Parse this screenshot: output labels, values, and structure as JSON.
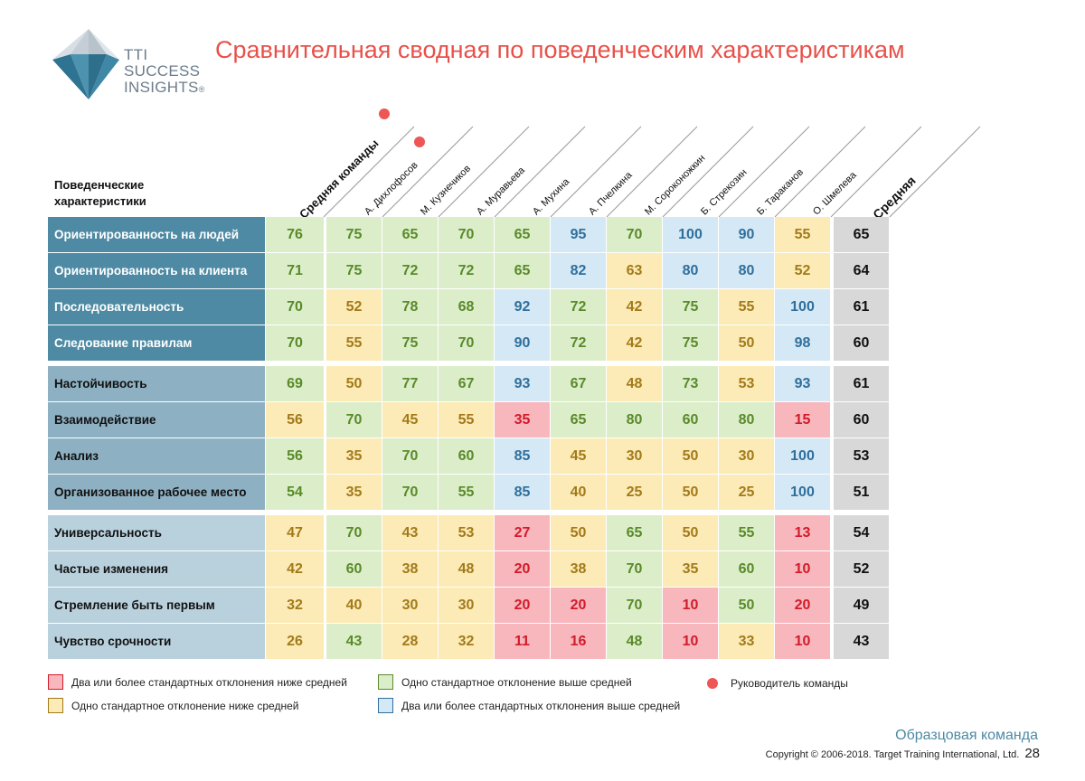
{
  "logo": {
    "line1": "TTI",
    "line2": "SUCCESS",
    "line3": "INSIGHTS",
    "reg": "®"
  },
  "title": "Сравнительная сводная по поведенческим характеристикам",
  "table": {
    "header_label": "Поведенческие характеристики",
    "columns": [
      {
        "label": "Средняя команды",
        "type": "avg-team",
        "leader": true
      },
      {
        "label": "А. Дихлофосов",
        "type": "person",
        "leader": true
      },
      {
        "label": "М. Кузнечиков",
        "type": "person",
        "leader": false
      },
      {
        "label": "А. Муравьева",
        "type": "person",
        "leader": false
      },
      {
        "label": "А. Мухина",
        "type": "person",
        "leader": false
      },
      {
        "label": "А. Пчелкина",
        "type": "person",
        "leader": false
      },
      {
        "label": "М. Сороконожкин",
        "type": "person",
        "leader": false
      },
      {
        "label": "Б. Стрекозин",
        "type": "person",
        "leader": false
      },
      {
        "label": "Б. Тараканов",
        "type": "person",
        "leader": false
      },
      {
        "label": "О. Шмелева",
        "type": "person",
        "leader": false
      },
      {
        "label": "Средняя",
        "type": "avg",
        "leader": false
      }
    ],
    "rows": [
      {
        "label": "Ориентированность на людей",
        "group": 1,
        "values": [
          "76",
          "75",
          "65",
          "70",
          "65",
          "95",
          "70",
          "100",
          "90",
          "55",
          "65"
        ],
        "colors": [
          "green",
          "green",
          "green",
          "green",
          "green",
          "blue",
          "green",
          "blue",
          "blue",
          "yellow",
          "gray"
        ]
      },
      {
        "label": "Ориентированность на клиента",
        "group": 1,
        "values": [
          "71",
          "75",
          "72",
          "72",
          "65",
          "82",
          "63",
          "80",
          "80",
          "52",
          "64"
        ],
        "colors": [
          "green",
          "green",
          "green",
          "green",
          "green",
          "blue",
          "yellow",
          "blue",
          "blue",
          "yellow",
          "gray"
        ]
      },
      {
        "label": "Последовательность",
        "group": 1,
        "values": [
          "70",
          "52",
          "78",
          "68",
          "92",
          "72",
          "42",
          "75",
          "55",
          "100",
          "61"
        ],
        "colors": [
          "green",
          "yellow",
          "green",
          "green",
          "blue",
          "green",
          "yellow",
          "green",
          "yellow",
          "blue",
          "gray"
        ]
      },
      {
        "label": "Следование правилам",
        "group": 1,
        "values": [
          "70",
          "55",
          "75",
          "70",
          "90",
          "72",
          "42",
          "75",
          "50",
          "98",
          "60"
        ],
        "colors": [
          "green",
          "yellow",
          "green",
          "green",
          "blue",
          "green",
          "yellow",
          "green",
          "yellow",
          "blue",
          "gray"
        ]
      },
      {
        "label": "Настойчивость",
        "group": 2,
        "values": [
          "69",
          "50",
          "77",
          "67",
          "93",
          "67",
          "48",
          "73",
          "53",
          "93",
          "61"
        ],
        "colors": [
          "green",
          "yellow",
          "green",
          "green",
          "blue",
          "green",
          "yellow",
          "green",
          "yellow",
          "blue",
          "gray"
        ]
      },
      {
        "label": "Взаимодействие",
        "group": 2,
        "values": [
          "56",
          "70",
          "45",
          "55",
          "35",
          "65",
          "80",
          "60",
          "80",
          "15",
          "60"
        ],
        "colors": [
          "yellow",
          "green",
          "yellow",
          "yellow",
          "red",
          "green",
          "green",
          "green",
          "green",
          "red",
          "gray"
        ]
      },
      {
        "label": "Анализ",
        "group": 2,
        "values": [
          "56",
          "35",
          "70",
          "60",
          "85",
          "45",
          "30",
          "50",
          "30",
          "100",
          "53"
        ],
        "colors": [
          "green",
          "yellow",
          "green",
          "green",
          "blue",
          "yellow",
          "yellow",
          "yellow",
          "yellow",
          "blue",
          "gray"
        ]
      },
      {
        "label": "Организованное рабочее место",
        "group": 2,
        "values": [
          "54",
          "35",
          "70",
          "55",
          "85",
          "40",
          "25",
          "50",
          "25",
          "100",
          "51"
        ],
        "colors": [
          "green",
          "yellow",
          "green",
          "green",
          "blue",
          "yellow",
          "yellow",
          "yellow",
          "yellow",
          "blue",
          "gray"
        ]
      },
      {
        "label": "Универсальность",
        "group": 3,
        "values": [
          "47",
          "70",
          "43",
          "53",
          "27",
          "50",
          "65",
          "50",
          "55",
          "13",
          "54"
        ],
        "colors": [
          "yellow",
          "green",
          "yellow",
          "yellow",
          "red",
          "yellow",
          "green",
          "yellow",
          "green",
          "red",
          "gray"
        ]
      },
      {
        "label": "Частые изменения",
        "group": 3,
        "values": [
          "42",
          "60",
          "38",
          "48",
          "20",
          "38",
          "70",
          "35",
          "60",
          "10",
          "52"
        ],
        "colors": [
          "yellow",
          "green",
          "yellow",
          "yellow",
          "red",
          "yellow",
          "green",
          "yellow",
          "green",
          "red",
          "gray"
        ]
      },
      {
        "label": "Стремление быть первым",
        "group": 3,
        "values": [
          "32",
          "40",
          "30",
          "30",
          "20",
          "20",
          "70",
          "10",
          "50",
          "20",
          "49"
        ],
        "colors": [
          "yellow",
          "yellow",
          "yellow",
          "yellow",
          "red",
          "red",
          "green",
          "red",
          "green",
          "red",
          "gray"
        ]
      },
      {
        "label": "Чувство срочности",
        "group": 3,
        "values": [
          "26",
          "43",
          "28",
          "32",
          "11",
          "16",
          "48",
          "10",
          "33",
          "10",
          "43"
        ],
        "colors": [
          "yellow",
          "green",
          "yellow",
          "yellow",
          "red",
          "red",
          "green",
          "red",
          "yellow",
          "red",
          "gray"
        ]
      }
    ]
  },
  "legend": {
    "red": "Два или более стандартных отклонения ниже средней",
    "yellow": "Одно стандартное отклонение ниже средней",
    "green": "Одно стандартное отклонение выше средней",
    "blue": "Два или более стандартных отклонения выше средней",
    "leader": "Руководитель команды"
  },
  "colors": {
    "title": "#e8514a",
    "green": "#dbeec9",
    "yellow": "#fcebb6",
    "blue": "#d5e8f5",
    "red": "#f8b6bd",
    "gray": "#d8d8d8",
    "label_dark": "#4e8aa3"
  },
  "footer": {
    "team": "Образцовая команда",
    "copyright": "Copyright © 2006-2018. Target Training International, Ltd.",
    "page": "28"
  }
}
